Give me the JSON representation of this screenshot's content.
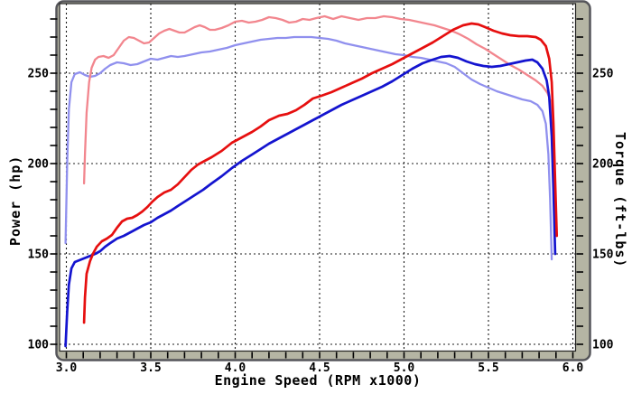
{
  "chart_data": {
    "type": "line",
    "title": "",
    "xlabel": "Engine Speed (RPM x1000)",
    "ylabel_left": "Power (hp)",
    "ylabel_right": "Torque (ft-lbs)",
    "x_range": [
      2.96,
      6.04
    ],
    "y_range": [
      96.5,
      288.5
    ],
    "grid": "dashed",
    "legend": "none",
    "x_major_ticks": [
      {
        "v": 3.0,
        "label": "3.0"
      },
      {
        "v": 3.5,
        "label": "3.5"
      },
      {
        "v": 4.0,
        "label": "4.0"
      },
      {
        "v": 4.5,
        "label": "4.5"
      },
      {
        "v": 5.0,
        "label": "5.0"
      },
      {
        "v": 5.5,
        "label": "5.5"
      },
      {
        "v": 6.0,
        "label": "6.0"
      }
    ],
    "y_major_ticks": [
      {
        "v": 250,
        "label": "250"
      },
      {
        "v": 200,
        "label": "200"
      },
      {
        "v": 150,
        "label": "150"
      },
      {
        "v": 100,
        "label": "100"
      }
    ],
    "x_minor_ticks": {
      "min": 3.0,
      "max": 6.0,
      "step": 0.1
    },
    "y_minor_ticks": {
      "min": 100,
      "max": 280,
      "step": 10
    },
    "series": [
      {
        "name": "torque-blue-run",
        "axis": "right",
        "color": "#9090ee",
        "width": 2.3,
        "points": [
          [
            2.995,
            156
          ],
          [
            3.005,
            200
          ],
          [
            3.015,
            230
          ],
          [
            3.03,
            245
          ],
          [
            3.05,
            249.5
          ],
          [
            3.08,
            250.5
          ],
          [
            3.11,
            249
          ],
          [
            3.14,
            248
          ],
          [
            3.17,
            248.5
          ],
          [
            3.2,
            250
          ],
          [
            3.23,
            252.5
          ],
          [
            3.26,
            254.5
          ],
          [
            3.3,
            256
          ],
          [
            3.34,
            255.5
          ],
          [
            3.38,
            254.5
          ],
          [
            3.42,
            255
          ],
          [
            3.46,
            256.5
          ],
          [
            3.5,
            258
          ],
          [
            3.54,
            257.5
          ],
          [
            3.58,
            258.5
          ],
          [
            3.62,
            259.5
          ],
          [
            3.66,
            259
          ],
          [
            3.7,
            259.5
          ],
          [
            3.75,
            260.5
          ],
          [
            3.8,
            261.5
          ],
          [
            3.85,
            262
          ],
          [
            3.9,
            263
          ],
          [
            3.95,
            264
          ],
          [
            4.0,
            265.5
          ],
          [
            4.05,
            266.5
          ],
          [
            4.1,
            267.5
          ],
          [
            4.15,
            268.5
          ],
          [
            4.2,
            269
          ],
          [
            4.25,
            269.5
          ],
          [
            4.3,
            269.5
          ],
          [
            4.35,
            270
          ],
          [
            4.4,
            270
          ],
          [
            4.45,
            270
          ],
          [
            4.5,
            269.5
          ],
          [
            4.55,
            269
          ],
          [
            4.6,
            268
          ],
          [
            4.65,
            266.5
          ],
          [
            4.7,
            265.5
          ],
          [
            4.75,
            264.5
          ],
          [
            4.8,
            263.5
          ],
          [
            4.85,
            262.5
          ],
          [
            4.9,
            261.5
          ],
          [
            4.95,
            260.5
          ],
          [
            5.0,
            260
          ],
          [
            5.05,
            259
          ],
          [
            5.1,
            258.5
          ],
          [
            5.15,
            257.5
          ],
          [
            5.2,
            256.5
          ],
          [
            5.25,
            255.5
          ],
          [
            5.3,
            253.5
          ],
          [
            5.35,
            250
          ],
          [
            5.4,
            246.5
          ],
          [
            5.45,
            244
          ],
          [
            5.5,
            242
          ],
          [
            5.55,
            240
          ],
          [
            5.6,
            238.5
          ],
          [
            5.65,
            237
          ],
          [
            5.7,
            235.5
          ],
          [
            5.75,
            234.5
          ],
          [
            5.79,
            232.5
          ],
          [
            5.82,
            229
          ],
          [
            5.84,
            222
          ],
          [
            5.855,
            205
          ],
          [
            5.865,
            180
          ],
          [
            5.875,
            147
          ]
        ]
      },
      {
        "name": "torque-red-run",
        "axis": "right",
        "color": "#f2868e",
        "width": 2.3,
        "points": [
          [
            3.105,
            189
          ],
          [
            3.11,
            205
          ],
          [
            3.12,
            228
          ],
          [
            3.135,
            245
          ],
          [
            3.15,
            253
          ],
          [
            3.17,
            257.5
          ],
          [
            3.19,
            259
          ],
          [
            3.22,
            259.5
          ],
          [
            3.25,
            258.5
          ],
          [
            3.28,
            260
          ],
          [
            3.31,
            264
          ],
          [
            3.34,
            268
          ],
          [
            3.37,
            270
          ],
          [
            3.4,
            269.5
          ],
          [
            3.43,
            268
          ],
          [
            3.46,
            266.5
          ],
          [
            3.49,
            267
          ],
          [
            3.52,
            269.5
          ],
          [
            3.55,
            272
          ],
          [
            3.58,
            273.5
          ],
          [
            3.61,
            274.5
          ],
          [
            3.64,
            273.5
          ],
          [
            3.67,
            272.5
          ],
          [
            3.7,
            272.5
          ],
          [
            3.73,
            274
          ],
          [
            3.76,
            275.5
          ],
          [
            3.79,
            276.5
          ],
          [
            3.82,
            275.5
          ],
          [
            3.85,
            274
          ],
          [
            3.88,
            274
          ],
          [
            3.92,
            275
          ],
          [
            3.96,
            276.5
          ],
          [
            4.0,
            278.5
          ],
          [
            4.04,
            279
          ],
          [
            4.08,
            278
          ],
          [
            4.12,
            278.5
          ],
          [
            4.16,
            279.5
          ],
          [
            4.2,
            281
          ],
          [
            4.24,
            280.5
          ],
          [
            4.28,
            279.5
          ],
          [
            4.32,
            278
          ],
          [
            4.36,
            278.5
          ],
          [
            4.4,
            280
          ],
          [
            4.44,
            279.5
          ],
          [
            4.48,
            280.5
          ],
          [
            4.53,
            281.5
          ],
          [
            4.58,
            280
          ],
          [
            4.63,
            281.5
          ],
          [
            4.68,
            280.5
          ],
          [
            4.73,
            279.5
          ],
          [
            4.78,
            280.5
          ],
          [
            4.83,
            280.5
          ],
          [
            4.88,
            281.5
          ],
          [
            4.93,
            281
          ],
          [
            4.98,
            280
          ],
          [
            5.03,
            279.5
          ],
          [
            5.08,
            278.5
          ],
          [
            5.13,
            277.5
          ],
          [
            5.18,
            276.5
          ],
          [
            5.23,
            275
          ],
          [
            5.28,
            273.5
          ],
          [
            5.33,
            271.5
          ],
          [
            5.38,
            269
          ],
          [
            5.43,
            266
          ],
          [
            5.48,
            263.5
          ],
          [
            5.53,
            260.5
          ],
          [
            5.58,
            257.5
          ],
          [
            5.63,
            254.5
          ],
          [
            5.68,
            252
          ],
          [
            5.73,
            249
          ],
          [
            5.78,
            246
          ],
          [
            5.82,
            243
          ],
          [
            5.85,
            239
          ],
          [
            5.87,
            234
          ],
          [
            5.88,
            225
          ],
          [
            5.89,
            200
          ],
          [
            5.895,
            180
          ],
          [
            5.9,
            162
          ]
        ]
      },
      {
        "name": "power-blue-run",
        "axis": "left",
        "color": "#1414cf",
        "width": 2.7,
        "points": [
          [
            2.995,
            99
          ],
          [
            3.005,
            118
          ],
          [
            3.015,
            133
          ],
          [
            3.03,
            142
          ],
          [
            3.05,
            145.5
          ],
          [
            3.09,
            147
          ],
          [
            3.13,
            148.5
          ],
          [
            3.17,
            150
          ],
          [
            3.2,
            151.5
          ],
          [
            3.23,
            154
          ],
          [
            3.26,
            156
          ],
          [
            3.3,
            158.5
          ],
          [
            3.34,
            160
          ],
          [
            3.38,
            162
          ],
          [
            3.42,
            164
          ],
          [
            3.46,
            166
          ],
          [
            3.5,
            167.5
          ],
          [
            3.54,
            170
          ],
          [
            3.58,
            172
          ],
          [
            3.62,
            174
          ],
          [
            3.66,
            176.5
          ],
          [
            3.71,
            179.5
          ],
          [
            3.76,
            182.5
          ],
          [
            3.81,
            185.5
          ],
          [
            3.86,
            189
          ],
          [
            3.92,
            193
          ],
          [
            3.98,
            197.5
          ],
          [
            4.04,
            201.5
          ],
          [
            4.1,
            205
          ],
          [
            4.15,
            208
          ],
          [
            4.2,
            211
          ],
          [
            4.26,
            214
          ],
          [
            4.31,
            216.5
          ],
          [
            4.36,
            219
          ],
          [
            4.41,
            221.5
          ],
          [
            4.46,
            224
          ],
          [
            4.51,
            226.5
          ],
          [
            4.57,
            229.5
          ],
          [
            4.63,
            232.5
          ],
          [
            4.69,
            235
          ],
          [
            4.75,
            237.5
          ],
          [
            4.81,
            240
          ],
          [
            4.87,
            242.5
          ],
          [
            4.93,
            245.5
          ],
          [
            4.99,
            249
          ],
          [
            5.05,
            252.5
          ],
          [
            5.11,
            255.5
          ],
          [
            5.17,
            257.5
          ],
          [
            5.22,
            259
          ],
          [
            5.27,
            259.5
          ],
          [
            5.32,
            258.5
          ],
          [
            5.37,
            256.5
          ],
          [
            5.42,
            255
          ],
          [
            5.47,
            254
          ],
          [
            5.52,
            253.5
          ],
          [
            5.57,
            254
          ],
          [
            5.62,
            255
          ],
          [
            5.67,
            256
          ],
          [
            5.72,
            257
          ],
          [
            5.76,
            257.5
          ],
          [
            5.79,
            256
          ],
          [
            5.82,
            252.5
          ],
          [
            5.845,
            246
          ],
          [
            5.86,
            237
          ],
          [
            5.875,
            215
          ],
          [
            5.885,
            185
          ],
          [
            5.895,
            150
          ]
        ]
      },
      {
        "name": "power-red-run",
        "axis": "left",
        "color": "#e60f0f",
        "width": 2.7,
        "points": [
          [
            3.105,
            112
          ],
          [
            3.11,
            126
          ],
          [
            3.12,
            139
          ],
          [
            3.14,
            146
          ],
          [
            3.16,
            150.5
          ],
          [
            3.18,
            154
          ],
          [
            3.21,
            157
          ],
          [
            3.24,
            158.5
          ],
          [
            3.27,
            160.5
          ],
          [
            3.3,
            164.5
          ],
          [
            3.33,
            168
          ],
          [
            3.36,
            169.5
          ],
          [
            3.39,
            170
          ],
          [
            3.42,
            171.5
          ],
          [
            3.45,
            173.5
          ],
          [
            3.48,
            176
          ],
          [
            3.51,
            179
          ],
          [
            3.54,
            181.5
          ],
          [
            3.58,
            184
          ],
          [
            3.62,
            185.5
          ],
          [
            3.66,
            188.5
          ],
          [
            3.7,
            192.5
          ],
          [
            3.74,
            196.5
          ],
          [
            3.78,
            199.5
          ],
          [
            3.82,
            201.5
          ],
          [
            3.86,
            203.5
          ],
          [
            3.92,
            207
          ],
          [
            3.98,
            211.5
          ],
          [
            4.04,
            214.5
          ],
          [
            4.1,
            217.5
          ],
          [
            4.15,
            220.5
          ],
          [
            4.2,
            224
          ],
          [
            4.26,
            226.5
          ],
          [
            4.31,
            227.5
          ],
          [
            4.36,
            229.5
          ],
          [
            4.41,
            232.5
          ],
          [
            4.46,
            236
          ],
          [
            4.51,
            237.5
          ],
          [
            4.57,
            239.5
          ],
          [
            4.63,
            242
          ],
          [
            4.69,
            244.5
          ],
          [
            4.75,
            247
          ],
          [
            4.81,
            250
          ],
          [
            4.87,
            252.5
          ],
          [
            4.93,
            255
          ],
          [
            4.99,
            258
          ],
          [
            5.05,
            261
          ],
          [
            5.11,
            264
          ],
          [
            5.17,
            267
          ],
          [
            5.23,
            270.5
          ],
          [
            5.29,
            274
          ],
          [
            5.35,
            276.5
          ],
          [
            5.4,
            277.5
          ],
          [
            5.44,
            277
          ],
          [
            5.48,
            275.5
          ],
          [
            5.53,
            273.5
          ],
          [
            5.58,
            272
          ],
          [
            5.63,
            271
          ],
          [
            5.68,
            270.5
          ],
          [
            5.73,
            270.5
          ],
          [
            5.78,
            270
          ],
          [
            5.81,
            268.5
          ],
          [
            5.84,
            265
          ],
          [
            5.86,
            258
          ],
          [
            5.875,
            245
          ],
          [
            5.885,
            222
          ],
          [
            5.895,
            190
          ],
          [
            5.905,
            160
          ]
        ]
      }
    ]
  },
  "style": {
    "frame_border_color": "#55555a",
    "frame_fill_color": "#b5b5a4",
    "plot_bg_color": "#ffffff",
    "grid_color": "#1c1c1c",
    "tick_color": "#000000",
    "label_color": "#000000"
  }
}
